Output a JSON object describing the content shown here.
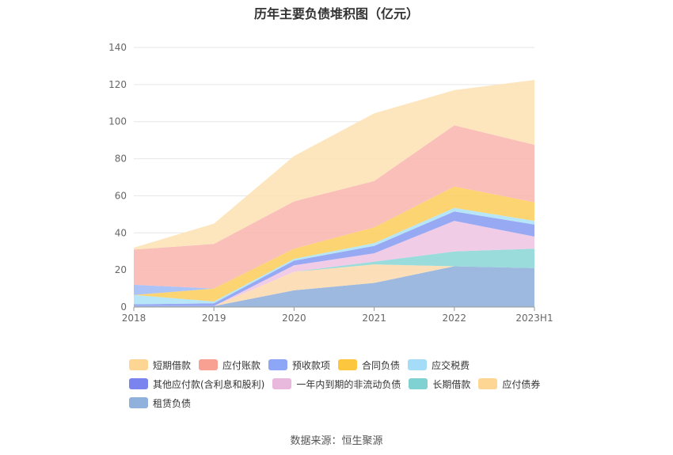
{
  "chart_data": {
    "type": "area",
    "stacked": true,
    "title": "历年主要负债堆积图（亿元）",
    "source": "数据来源：恒生聚源",
    "categories": [
      "2018",
      "2019",
      "2020",
      "2021",
      "2022",
      "2023H1"
    ],
    "ylim": [
      0,
      140
    ],
    "yticks": [
      0,
      20,
      40,
      60,
      80,
      100,
      120,
      140
    ],
    "grid": true,
    "legend_position": "bottom",
    "series": [
      {
        "name": "租赁负债",
        "color": "#93b1dc",
        "values": [
          0.5,
          0.5,
          9.0,
          13.0,
          22.0,
          21.0
        ]
      },
      {
        "name": "应付债券",
        "color": "#fcdcb0",
        "values": [
          0,
          0,
          10.0,
          10.0,
          0,
          0
        ]
      },
      {
        "name": "长期借款",
        "color": "#8fd8d8",
        "values": [
          0,
          0,
          0,
          1.5,
          8.0,
          10.5
        ]
      },
      {
        "name": "一年内到期的非流动负债",
        "color": "#efc7e4",
        "values": [
          0,
          0,
          3.5,
          4.5,
          16.5,
          6.5
        ]
      },
      {
        "name": "其他应付款(含利息和股利)",
        "color": "#8da0f2",
        "values": [
          1.0,
          1.5,
          2.5,
          4.0,
          5.0,
          6.5
        ]
      },
      {
        "name": "应交税费",
        "color": "#aee3f7",
        "values": [
          5.0,
          1.0,
          1.0,
          1.5,
          2.0,
          2.0
        ]
      },
      {
        "name": "合同负债",
        "color": "#fccf63",
        "values": [
          0,
          7.0,
          5.5,
          8.5,
          11.5,
          10.0
        ]
      },
      {
        "name": "预收款项",
        "color": "#a3bdf7",
        "values": [
          5.5,
          0,
          0,
          0,
          0,
          0
        ]
      },
      {
        "name": "应付账款",
        "color": "#fab8b0",
        "values": [
          19.0,
          24.0,
          25.5,
          25.0,
          33.0,
          31.0
        ]
      },
      {
        "name": "短期借款",
        "color": "#fde3b7",
        "values": [
          1.0,
          11.0,
          24.5,
          36.5,
          19.0,
          35.0
        ]
      }
    ],
    "legend_order": [
      "短期借款",
      "应付账款",
      "预收款项",
      "合同负债",
      "应交税费",
      "其他应付款(含利息和股利)",
      "一年内到期的非流动负债",
      "长期借款",
      "应付债券",
      "租赁负债"
    ],
    "legend_colors": [
      "#fdd694",
      "#f8a092",
      "#8da6f5",
      "#fcc63e",
      "#a5dcf7",
      "#7b83ee",
      "#e8b9dd",
      "#80d1d1",
      "#fdd694",
      "#8fb1dc"
    ]
  }
}
